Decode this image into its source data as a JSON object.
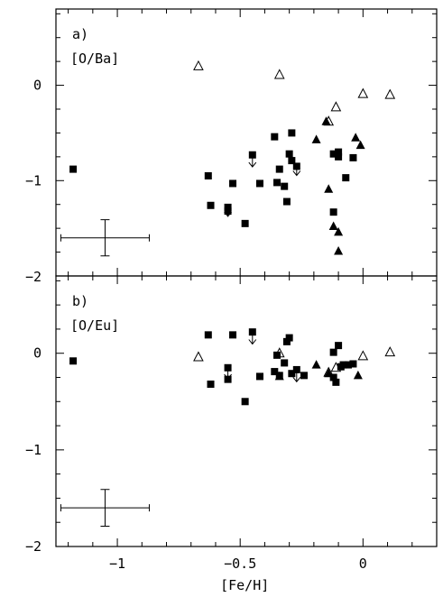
{
  "chart_data": [
    {
      "type": "scatter",
      "panel_label": "a)",
      "ratio_label": "[O/Ba]",
      "xlabel": "[Fe/H]",
      "xlim": [
        -1.25,
        0.3
      ],
      "ylim": [
        -2.0,
        0.8
      ],
      "xticks": [
        -1,
        -0.5,
        0
      ],
      "xticklabels": [
        "−1",
        "−0.5",
        "0"
      ],
      "yticks": [
        0,
        -1,
        -2
      ],
      "yticklabels": [
        "0",
        "−1",
        "−2"
      ],
      "series": [
        {
          "marker": "filled-square",
          "points": [
            [
              -1.18,
              -0.88
            ],
            [
              -0.63,
              -0.95
            ],
            [
              -0.62,
              -1.26
            ],
            [
              -0.55,
              -1.28
            ],
            [
              -0.55,
              -1.32
            ],
            [
              -0.53,
              -1.03
            ],
            [
              -0.48,
              -1.45
            ],
            [
              -0.45,
              -0.73
            ],
            [
              -0.42,
              -1.03
            ],
            [
              -0.36,
              -0.54
            ],
            [
              -0.35,
              -1.02
            ],
            [
              -0.34,
              -0.88
            ],
            [
              -0.32,
              -1.06
            ],
            [
              -0.31,
              -1.22
            ],
            [
              -0.3,
              -0.72
            ],
            [
              -0.29,
              -0.5
            ],
            [
              -0.29,
              -0.79
            ],
            [
              -0.27,
              -0.85
            ],
            [
              -0.12,
              -0.72
            ],
            [
              -0.12,
              -1.33
            ],
            [
              -0.1,
              -0.7
            ],
            [
              -0.1,
              -0.75
            ],
            [
              -0.07,
              -0.97
            ],
            [
              -0.04,
              -0.76
            ]
          ]
        },
        {
          "marker": "filled-triangle",
          "points": [
            [
              -0.19,
              -0.57
            ],
            [
              -0.15,
              -0.38
            ],
            [
              -0.14,
              -1.09
            ],
            [
              -0.12,
              -1.48
            ],
            [
              -0.1,
              -1.54
            ],
            [
              -0.1,
              -1.74
            ],
            [
              -0.03,
              -0.55
            ],
            [
              -0.01,
              -0.63
            ]
          ]
        },
        {
          "marker": "open-triangle",
          "points": [
            [
              -0.67,
              0.2
            ],
            [
              -0.34,
              0.11
            ],
            [
              -0.14,
              -0.38
            ],
            [
              -0.11,
              -0.23
            ],
            [
              0.0,
              -0.09
            ],
            [
              0.11,
              -0.1
            ]
          ]
        },
        {
          "marker": "upper-limit-arrow",
          "points": [
            [
              -0.55,
              -1.3
            ],
            [
              -0.45,
              -0.78
            ],
            [
              -0.27,
              -0.87
            ]
          ]
        }
      ],
      "error_bar": {
        "x": -1.05,
        "y": -1.6,
        "xerr": 0.18,
        "yerr": 0.19
      }
    },
    {
      "type": "scatter",
      "panel_label": "b)",
      "ratio_label": "[O/Eu]",
      "xlabel": "[Fe/H]",
      "xlim": [
        -1.25,
        0.3
      ],
      "ylim": [
        -2.0,
        0.8
      ],
      "xticks": [
        -1,
        -0.5,
        0
      ],
      "xticklabels": [
        "−1",
        "−0.5",
        "0"
      ],
      "yticks": [
        0,
        -1,
        -2
      ],
      "yticklabels": [
        "0",
        "−1",
        "−2"
      ],
      "series": [
        {
          "marker": "filled-square",
          "points": [
            [
              -1.18,
              -0.08
            ],
            [
              -0.63,
              0.19
            ],
            [
              -0.62,
              -0.32
            ],
            [
              -0.55,
              -0.15
            ],
            [
              -0.55,
              -0.27
            ],
            [
              -0.53,
              0.19
            ],
            [
              -0.48,
              -0.5
            ],
            [
              -0.45,
              0.22
            ],
            [
              -0.42,
              -0.24
            ],
            [
              -0.36,
              -0.19
            ],
            [
              -0.35,
              -0.02
            ],
            [
              -0.34,
              -0.23
            ],
            [
              -0.32,
              -0.1
            ],
            [
              -0.31,
              0.12
            ],
            [
              -0.3,
              0.16
            ],
            [
              -0.29,
              -0.21
            ],
            [
              -0.27,
              -0.17
            ],
            [
              -0.24,
              -0.23
            ],
            [
              -0.12,
              -0.25
            ],
            [
              -0.12,
              0.01
            ],
            [
              -0.11,
              -0.3
            ],
            [
              -0.1,
              0.08
            ],
            [
              -0.09,
              -0.14
            ],
            [
              -0.08,
              -0.12
            ],
            [
              -0.06,
              -0.12
            ],
            [
              -0.04,
              -0.11
            ]
          ]
        },
        {
          "marker": "filled-triangle",
          "points": [
            [
              -0.34,
              -0.24
            ],
            [
              -0.19,
              -0.12
            ],
            [
              -0.14,
              -0.21
            ],
            [
              -0.02,
              -0.23
            ]
          ]
        },
        {
          "marker": "open-triangle",
          "points": [
            [
              -0.67,
              -0.04
            ],
            [
              -0.34,
              0.0
            ],
            [
              -0.14,
              -0.2
            ],
            [
              -0.11,
              -0.15
            ],
            [
              0.0,
              -0.03
            ],
            [
              0.11,
              0.01
            ]
          ]
        },
        {
          "marker": "upper-limit-arrow",
          "points": [
            [
              -0.55,
              -0.19
            ],
            [
              -0.45,
              0.17
            ],
            [
              -0.27,
              -0.22
            ]
          ]
        }
      ],
      "error_bar": {
        "x": -1.05,
        "y": -1.6,
        "xerr": 0.18,
        "yerr": 0.19
      }
    }
  ]
}
